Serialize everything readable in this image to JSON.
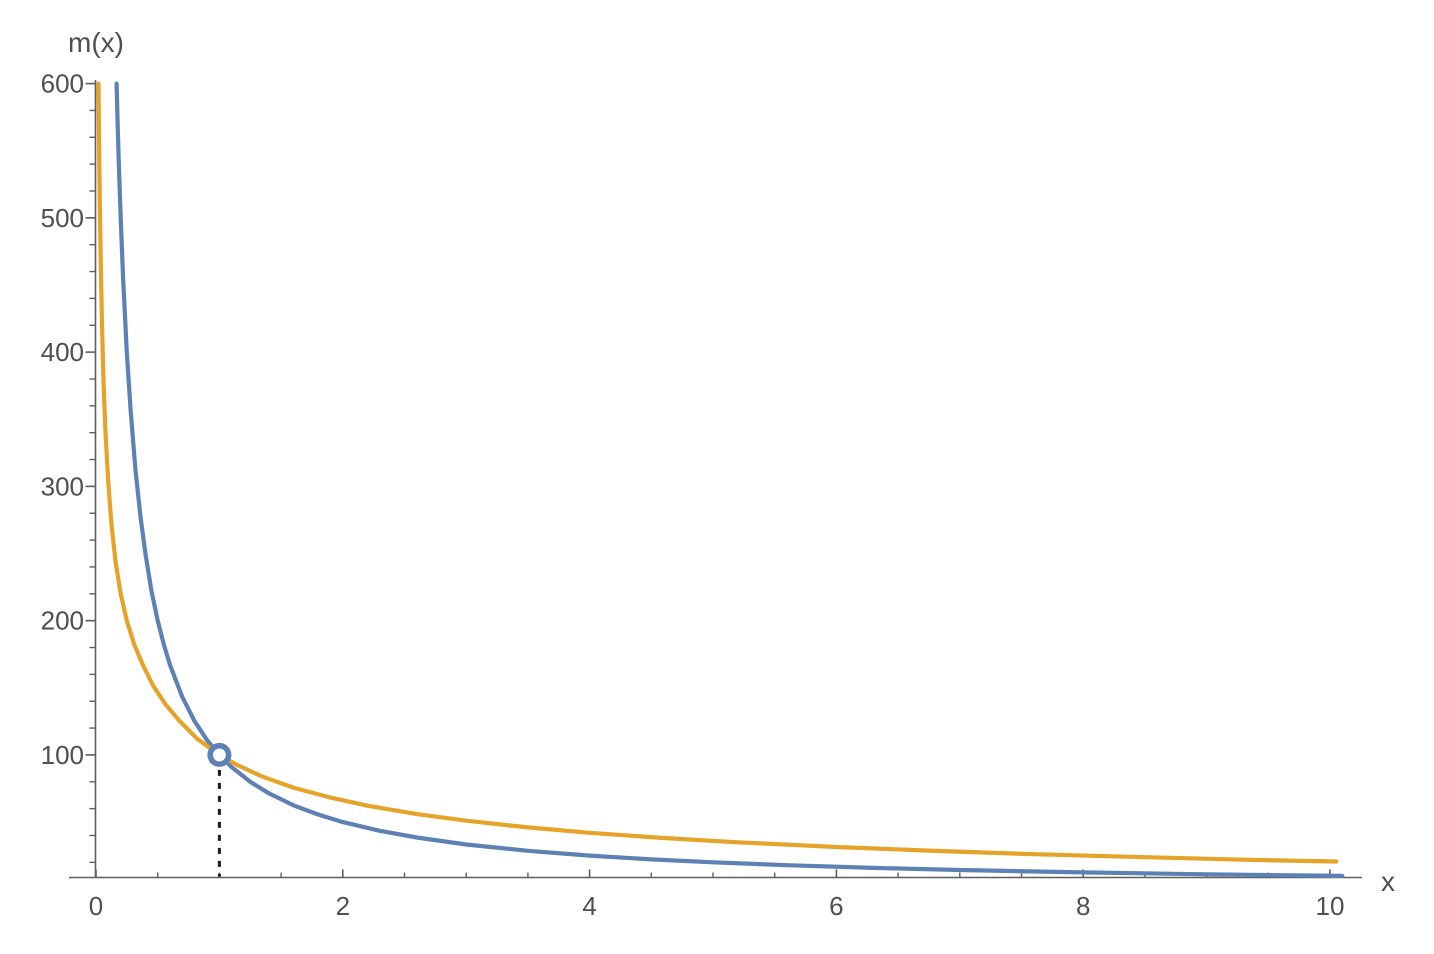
{
  "chart_data": {
    "type": "line",
    "title": "",
    "xlabel": "x",
    "ylabel": "m(x)",
    "xlim": [
      0,
      10
    ],
    "ylim": [
      0,
      600
    ],
    "x_ticks": [
      0,
      2,
      4,
      6,
      8,
      10
    ],
    "x_minor_step": 0.5,
    "y_ticks": [
      100,
      200,
      300,
      400,
      500,
      600
    ],
    "y_minor_step": 20,
    "grid": false,
    "legend_position": "none",
    "background": "#ffffff",
    "axis_color": "#5e5e5e",
    "tick_label_color": "#4f4f4f",
    "guide_color": "#1c1c1c",
    "series": [
      {
        "name": "steep-hyperbola-blue",
        "color": "#5E81B5",
        "stroke_width": 4.2,
        "points": [
          [
            0.167,
            600
          ],
          [
            0.175,
            571
          ],
          [
            0.185,
            541
          ],
          [
            0.2,
            500
          ],
          [
            0.22,
            455
          ],
          [
            0.25,
            400
          ],
          [
            0.28,
            357
          ],
          [
            0.32,
            312
          ],
          [
            0.36,
            278
          ],
          [
            0.4,
            250
          ],
          [
            0.45,
            222
          ],
          [
            0.5,
            200
          ],
          [
            0.55,
            182
          ],
          [
            0.6,
            167
          ],
          [
            0.7,
            143
          ],
          [
            0.8,
            125
          ],
          [
            0.9,
            111
          ],
          [
            1,
            100
          ],
          [
            1.1,
            90.9
          ],
          [
            1.25,
            80
          ],
          [
            1.4,
            71.4
          ],
          [
            1.6,
            62.5
          ],
          [
            1.8,
            55.6
          ],
          [
            2,
            50
          ],
          [
            2.3,
            43.5
          ],
          [
            2.6,
            38.5
          ],
          [
            3,
            33.3
          ],
          [
            3.5,
            28.6
          ],
          [
            4,
            25
          ],
          [
            4.5,
            22.2
          ],
          [
            5,
            20
          ],
          [
            5.6,
            17.9
          ],
          [
            6.3,
            15.9
          ],
          [
            7,
            14.3
          ],
          [
            8,
            12.5
          ],
          [
            9,
            11.1
          ],
          [
            10.1,
            9.9
          ]
        ]
      },
      {
        "name": "shallow-curve-orange",
        "color": "#E5A329",
        "stroke_width": 4.2,
        "points": [
          [
            0.02,
            600
          ],
          [
            0.025,
            555
          ],
          [
            0.031,
            510
          ],
          [
            0.039,
            465
          ],
          [
            0.049,
            420
          ],
          [
            0.061,
            378
          ],
          [
            0.077,
            340
          ],
          [
            0.098,
            305
          ],
          [
            0.125,
            272
          ],
          [
            0.16,
            243
          ],
          [
            0.2,
            220
          ],
          [
            0.25,
            200
          ],
          [
            0.31,
            182
          ],
          [
            0.38,
            167
          ],
          [
            0.46,
            152
          ],
          [
            0.56,
            138
          ],
          [
            0.68,
            125
          ],
          [
            0.82,
            112
          ],
          [
            1,
            100
          ],
          [
            1.15,
            92.2
          ],
          [
            1.35,
            83.8
          ],
          [
            1.6,
            75.7
          ],
          [
            1.9,
            68.2
          ],
          [
            2.2,
            62.2
          ],
          [
            2.6,
            55.9
          ],
          [
            3,
            51
          ],
          [
            3.5,
            46
          ],
          [
            4,
            42
          ],
          [
            4.6,
            38.1
          ],
          [
            5.2,
            34.9
          ],
          [
            6,
            31.4
          ],
          [
            6.8,
            28.5
          ],
          [
            7.6,
            26.1
          ],
          [
            8.5,
            23.8
          ],
          [
            9.3,
            22
          ],
          [
            10.05,
            20.6
          ]
        ]
      }
    ],
    "marked_point": {
      "x": 1,
      "y": 100,
      "marker": "open-circle",
      "ring_color": "#5E81B5",
      "fill_color": "#ffffff"
    },
    "guide_line": {
      "style": "vertical-dashed",
      "x": 1,
      "from_y": 0,
      "to_y": 100
    }
  }
}
